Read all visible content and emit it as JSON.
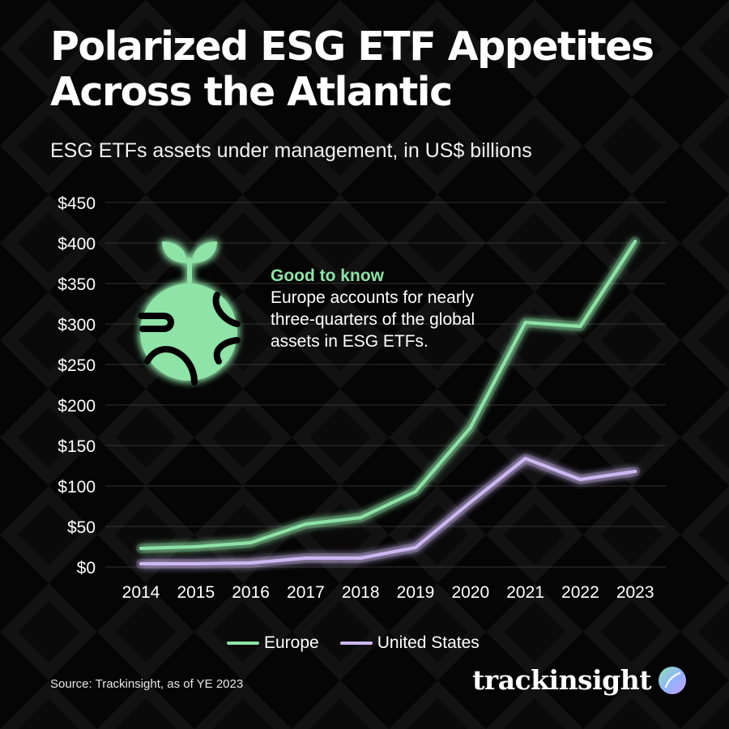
{
  "title": "Polarized ESG ETF Appetites Across the Atlantic",
  "subtitle": "ESG ETFs assets under management, in US$ billions",
  "callout": {
    "title": "Good to know",
    "body": "Europe accounts for nearly three-quarters of the global assets in ESG ETFs.",
    "icon": "globe-sprout-icon"
  },
  "source": "Source: Trackinsight, as of YE 2023",
  "brand": {
    "name": "trackinsight",
    "logo": "trackinsight-logo-icon"
  },
  "colors": {
    "europe": "#8ee3a6",
    "us": "#cdb8f2",
    "background": "#050505",
    "grid": "#444444"
  },
  "chart_data": {
    "type": "line",
    "x": [
      "2014",
      "2015",
      "2016",
      "2017",
      "2018",
      "2019",
      "2020",
      "2021",
      "2022",
      "2023"
    ],
    "series": [
      {
        "name": "Europe",
        "values": [
          23,
          25,
          30,
          53,
          61,
          93,
          172,
          302,
          297,
          402
        ]
      },
      {
        "name": "United States",
        "values": [
          4,
          4,
          5,
          11,
          11,
          24,
          80,
          134,
          108,
          118
        ]
      }
    ],
    "yticks": [
      "$0",
      "$50",
      "$100",
      "$150",
      "$200",
      "$250",
      "$300",
      "$350",
      "$400",
      "$450"
    ],
    "ylim": [
      0,
      450
    ],
    "grid": true,
    "legend": "bottom-center"
  }
}
